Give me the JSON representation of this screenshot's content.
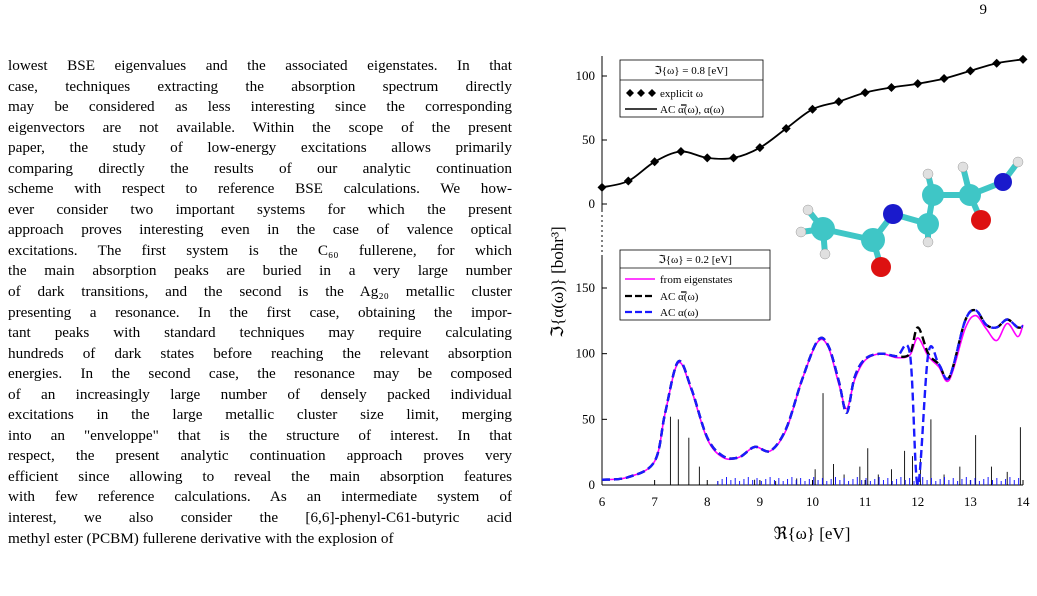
{
  "page_number": "9",
  "body_lines": [
    "lowest BSE eigenvalues and the associated eigenstates. In that",
    "case, techniques extracting the absorption spectrum directly",
    "may be considered as less interesting since the corresponding",
    "eigenvectors are not available. Within the scope of the present",
    "paper, the study of low-energy excitations allows primarily",
    "comparing directly the results of our analytic continuation",
    "scheme with respect to reference BSE calculations. We how-",
    "ever consider two important systems for which the present",
    "approach proves interesting even in the case of valence optical",
    "excitations. The first system is the C₆₀ fullerene, for which",
    "the main absorption peaks are buried in a very large number",
    "of dark transitions, and the second is the Ag₂₀ metallic cluster",
    "presenting a resonance. In the first case, obtaining the impor-",
    "tant peaks with standard techniques may require calculating",
    "hundreds of dark states before reaching the relevant absorption",
    "energies. In the second case, the resonance may be composed",
    "of an increasingly large number of densely packed individual",
    "excitations in the large metallic cluster size limit, merging",
    "into an \"enveloppe\" that is the structure of interest. In that",
    "respect, the present analytic continuation approach proves very",
    "efficient since allowing to reveal the main absorption features",
    "with few reference calculations. As an intermediate system of",
    "interest, we also consider the [6,6]-phenyl-C61-butyric acid",
    "methyl ester (PCBM) fullerene derivative with the explosion of"
  ],
  "figure": {
    "xlabel": "ℜ{ω} [eV]",
    "ylabel": "ℑ{α(ω)} [bohr³]",
    "x_ticks": [
      "6",
      "7",
      "8",
      "9",
      "10",
      "11",
      "12",
      "13",
      "14"
    ],
    "top_y_ticks": [
      "100",
      "50",
      "0"
    ],
    "bottom_y_ticks": [
      "150",
      "100",
      "50",
      "0"
    ],
    "top_legend": {
      "title": "ℑ{ω} = 0.8 [eV]",
      "entries": [
        "explicit ω",
        "AC α̿(ω), α(ω)"
      ]
    },
    "bottom_legend": {
      "title": "ℑ{ω} = 0.2 [eV]",
      "entries": [
        "from eigenstates",
        "AC α̿(ω)",
        "AC α(ω)"
      ]
    },
    "colors": {
      "eigenstates": "#ff00ff",
      "ac_tensor": "#000000",
      "ac_scalar": "#1a1aff",
      "carbon": "#3fc6c6",
      "nitrogen": "#1a1acc",
      "oxygen": "#dd1111",
      "hydrogen": "#e8e8e8"
    }
  },
  "chart_data": [
    {
      "type": "line",
      "title": "ℑ{ω} = 0.8 [eV]",
      "xlabel": "ℜ{ω} [eV]",
      "ylabel": "ℑ{α(ω)} [bohr³]",
      "xlim": [
        6,
        14
      ],
      "ylim": [
        -5,
        115
      ],
      "x": [
        6.0,
        6.5,
        7.0,
        7.5,
        8.0,
        8.5,
        9.0,
        9.5,
        10.0,
        10.5,
        11.0,
        11.5,
        12.0,
        12.5,
        13.0,
        13.5,
        14.0
      ],
      "series": [
        {
          "name": "explicit ω",
          "marker": "diamond",
          "values": [
            13,
            18,
            33,
            41,
            36,
            36,
            44,
            59,
            74,
            80,
            87,
            91,
            94,
            98,
            104,
            110,
            113
          ]
        },
        {
          "name": "AC α̿(ω), α(ω)",
          "marker": "none",
          "values": [
            13,
            18,
            33,
            41,
            36,
            36,
            44,
            59,
            74,
            80,
            87,
            91,
            94,
            98,
            104,
            110,
            113
          ]
        }
      ]
    },
    {
      "type": "line",
      "title": "ℑ{ω} = 0.2 [eV]",
      "xlabel": "ℜ{ω} [eV]",
      "ylabel": "ℑ{α(ω)} [bohr³]",
      "xlim": [
        6,
        14
      ],
      "ylim": [
        0,
        160
      ],
      "x": [
        6.0,
        6.5,
        7.0,
        7.2,
        7.45,
        7.7,
        8.0,
        8.3,
        8.6,
        8.9,
        9.2,
        9.5,
        9.8,
        10.1,
        10.3,
        10.5,
        10.65,
        10.8,
        11.0,
        11.3,
        11.6,
        11.85,
        12.0,
        12.2,
        12.4,
        12.6,
        12.9,
        13.1,
        13.3,
        13.5,
        13.7,
        13.9,
        14.0
      ],
      "series": [
        {
          "name": "from eigenstates",
          "values": [
            4,
            6,
            18,
            55,
            93,
            72,
            35,
            21,
            21,
            29,
            26,
            42,
            80,
            109,
            105,
            77,
            58,
            80,
            95,
            100,
            97,
            99,
            112,
            98,
            90,
            80,
            119,
            129,
            119,
            110,
            123,
            113,
            122
          ]
        },
        {
          "name": "AC α̿(ω)",
          "values": [
            4,
            6,
            18,
            55,
            94,
            73,
            36,
            22,
            21,
            29,
            26,
            43,
            80,
            110,
            106,
            79,
            55,
            82,
            96,
            100,
            98,
            100,
            120,
            100,
            92,
            82,
            125,
            133,
            122,
            120,
            126,
            120,
            121
          ]
        },
        {
          "name": "AC α(ω)",
          "values": [
            4,
            6,
            18,
            55,
            94,
            73,
            36,
            22,
            21,
            29,
            26,
            43,
            80,
            110,
            106,
            79,
            55,
            82,
            96,
            100,
            98,
            100,
            0,
            100,
            92,
            82,
            125,
            133,
            122,
            120,
            126,
            120,
            121
          ]
        }
      ]
    }
  ]
}
